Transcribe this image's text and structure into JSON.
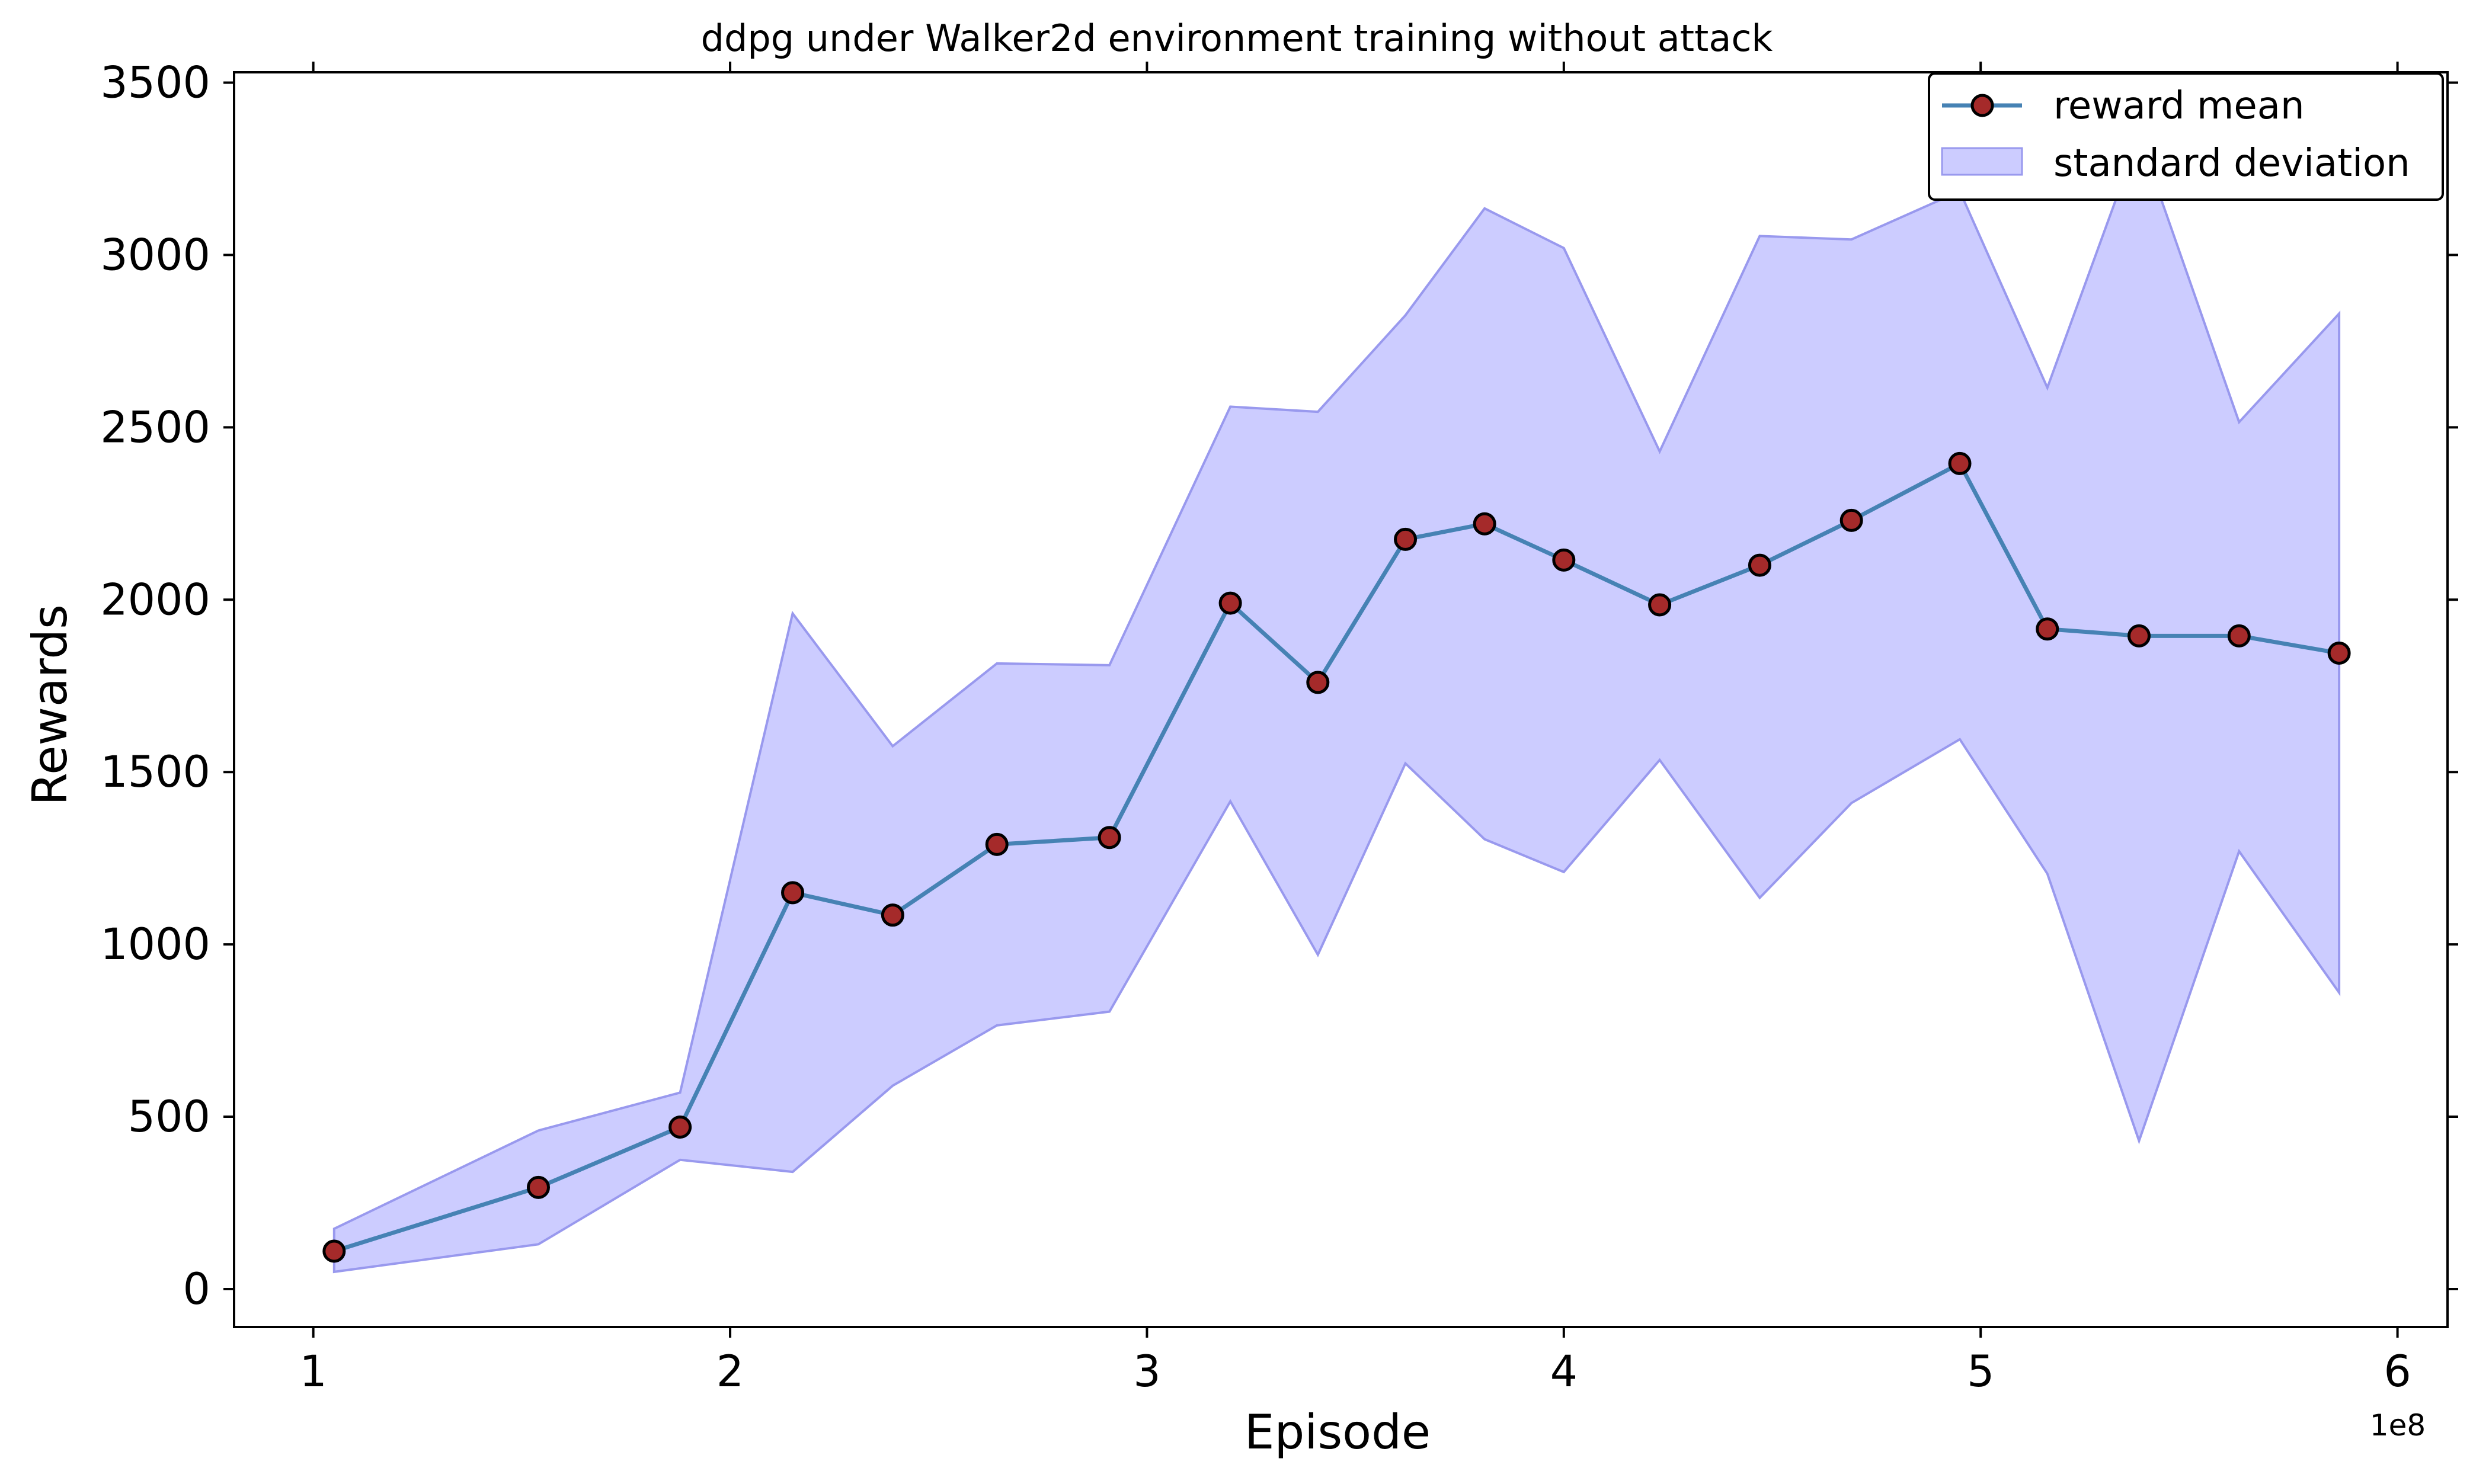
{
  "chart_data": {
    "type": "line",
    "title": "ddpg under Walker2d environment training without attack",
    "xlabel": "Episode",
    "ylabel": "Rewards",
    "x_offset_label": "1e8",
    "xlim": [
      0.81,
      6.12
    ],
    "ylim": [
      -110,
      3530
    ],
    "xticks": [
      1,
      2,
      3,
      4,
      5,
      6
    ],
    "yticks": [
      0,
      500,
      1000,
      1500,
      2000,
      2500,
      3000,
      3500
    ],
    "grid": false,
    "legend_position": "top-right",
    "colors": {
      "line": "#4682b4",
      "marker_face": "#a52a2a",
      "marker_edge": "#000000",
      "band": "#ccccff",
      "band_edge": "#9999ee"
    },
    "x": [
      1.05,
      1.54,
      1.88,
      2.15,
      2.39,
      2.64,
      2.91,
      3.2,
      3.41,
      3.62,
      3.81,
      4.0,
      4.23,
      4.47,
      4.69,
      4.95,
      5.16,
      5.38,
      5.62,
      5.86
    ],
    "series": [
      {
        "name": "reward mean",
        "values": [
          110,
          295,
          470,
          1150,
          1085,
          1290,
          1310,
          1990,
          1760,
          2175,
          2220,
          2115,
          1985,
          2100,
          2230,
          2395,
          1915,
          1895,
          1895,
          1845
        ]
      }
    ],
    "band": {
      "name": "standard deviation",
      "upper": [
        175,
        460,
        570,
        1960,
        1575,
        1815,
        1810,
        2560,
        2545,
        2825,
        3135,
        3020,
        2430,
        3055,
        3045,
        3185,
        2615,
        3345,
        2515,
        2830
      ],
      "lower": [
        50,
        130,
        375,
        340,
        590,
        765,
        805,
        1415,
        970,
        1525,
        1305,
        1210,
        1535,
        1135,
        1410,
        1595,
        1205,
        430,
        1270,
        860
      ]
    }
  }
}
